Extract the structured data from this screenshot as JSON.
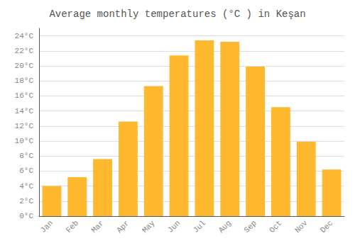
{
  "chart_data": {
    "type": "bar",
    "title": "Average monthly temperatures (°C ) in Keşan",
    "categories": [
      "Jan",
      "Feb",
      "Mar",
      "Apr",
      "May",
      "Jun",
      "Jul",
      "Aug",
      "Sep",
      "Oct",
      "Nov",
      "Dec"
    ],
    "values": [
      4.0,
      5.2,
      7.6,
      12.6,
      17.3,
      21.4,
      23.4,
      23.2,
      19.9,
      14.5,
      9.9,
      6.2
    ],
    "color": "#FFB92E",
    "ylim": [
      0,
      25
    ],
    "yticks": [
      {
        "value": 0,
        "label": "0°C"
      },
      {
        "value": 2,
        "label": "2°C"
      },
      {
        "value": 4,
        "label": "4°C"
      },
      {
        "value": 6,
        "label": "6°C"
      },
      {
        "value": 8,
        "label": "8°C"
      },
      {
        "value": 10,
        "label": "10°C"
      },
      {
        "value": 12,
        "label": "12°C"
      },
      {
        "value": 14,
        "label": "14°C"
      },
      {
        "value": 16,
        "label": "16°C"
      },
      {
        "value": 18,
        "label": "18°C"
      },
      {
        "value": 20,
        "label": "20°C"
      },
      {
        "value": 22,
        "label": "22°C"
      },
      {
        "value": 24,
        "label": "24°C"
      }
    ],
    "grid": true
  }
}
